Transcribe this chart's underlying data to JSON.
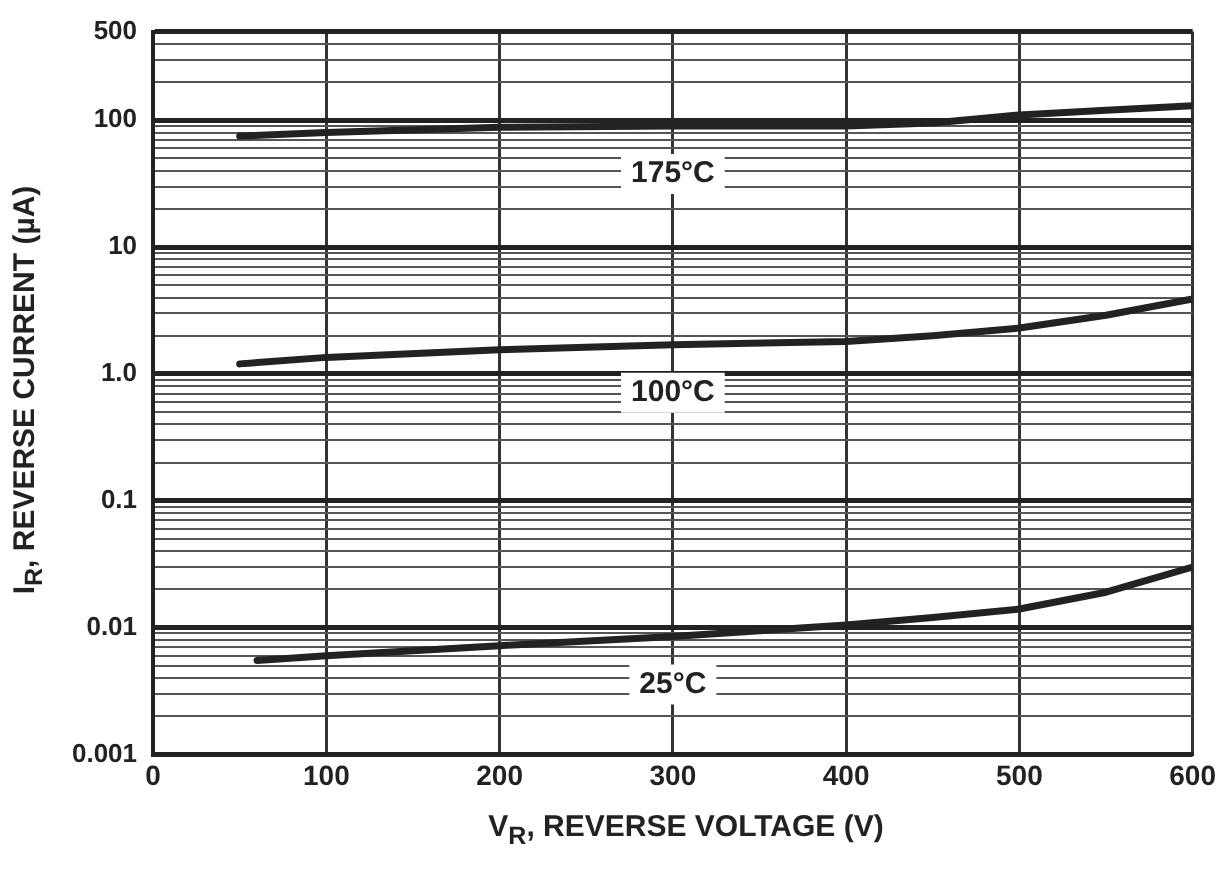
{
  "chart_data": {
    "type": "line",
    "xlabel": "V$_{R}$, REVERSE VOLTAGE (V)",
    "ylabel": "I$_{R}$, REVERSE CURRENT (µA)",
    "log": "y",
    "grid": true,
    "legend": false,
    "marker": "none",
    "line_style": "solid",
    "xlim": [
      0,
      600
    ],
    "xticks": [
      0,
      100,
      200,
      300,
      400,
      500,
      600
    ],
    "ylim": [
      0.001,
      500
    ],
    "yticks": [
      0.001,
      {
        "value": 0.002,
        "label": null
      },
      {
        "value": 0.003,
        "label": null
      },
      {
        "value": 0.004,
        "label": null
      },
      {
        "value": 0.005,
        "label": null
      },
      {
        "value": 0.006,
        "label": null
      },
      {
        "value": 0.007,
        "label": null
      },
      {
        "value": 0.008,
        "label": null
      },
      {
        "value": 0.009,
        "label": null
      },
      0.01,
      {
        "value": 0.02,
        "label": null
      },
      {
        "value": 0.03,
        "label": null
      },
      {
        "value": 0.04,
        "label": null
      },
      {
        "value": 0.05,
        "label": null
      },
      {
        "value": 0.06,
        "label": null
      },
      {
        "value": 0.07,
        "label": null
      },
      {
        "value": 0.08,
        "label": null
      },
      {
        "value": 0.09,
        "label": null
      },
      0.1,
      {
        "value": 0.2,
        "label": null
      },
      {
        "value": 0.3,
        "label": null
      },
      {
        "value": 0.4,
        "label": null
      },
      {
        "value": 0.5,
        "label": null
      },
      {
        "value": 0.6,
        "label": null
      },
      {
        "value": 0.7,
        "label": null
      },
      {
        "value": 0.8,
        "label": null
      },
      {
        "value": 0.9,
        "label": null
      },
      {
        "value": 1,
        "label": "1.0"
      },
      {
        "value": 2,
        "label": null
      },
      {
        "value": 3,
        "label": null
      },
      {
        "value": 4,
        "label": null
      },
      {
        "value": 5,
        "label": null
      },
      {
        "value": 6,
        "label": null
      },
      {
        "value": 7,
        "label": null
      },
      {
        "value": 8,
        "label": null
      },
      {
        "value": 9,
        "label": null
      },
      10,
      {
        "value": 20,
        "label": null
      },
      {
        "value": 30,
        "label": null
      },
      {
        "value": 40,
        "label": null
      },
      {
        "value": 50,
        "label": null
      },
      {
        "value": 60,
        "label": null
      },
      {
        "value": 70,
        "label": null
      },
      {
        "value": 80,
        "label": null
      },
      {
        "value": 90,
        "label": null
      },
      100,
      {
        "value": 200,
        "label": null
      },
      {
        "value": 300,
        "label": null
      },
      {
        "value": 400,
        "label": null
      },
      500
    ],
    "series": [
      {
        "name": "175°C",
        "color": "#222222",
        "x": [
          50,
          100,
          200,
          300,
          400,
          450,
          500,
          550,
          600
        ],
        "values": [
          75,
          80,
          88,
          90,
          90,
          95,
          110,
          120,
          130
        ]
      },
      {
        "name": "100°C",
        "color": "#222222",
        "x": [
          50,
          100,
          200,
          300,
          400,
          450,
          500,
          550,
          600
        ],
        "values": [
          1.2,
          1.35,
          1.55,
          1.7,
          1.8,
          2.0,
          2.3,
          2.9,
          3.9
        ]
      },
      {
        "name": "25°C",
        "color": "#222222",
        "x": [
          60,
          100,
          200,
          300,
          400,
          450,
          500,
          550,
          600
        ],
        "values": [
          0.0055,
          0.006,
          0.0072,
          0.0085,
          0.0105,
          0.012,
          0.014,
          0.019,
          0.03
        ]
      }
    ]
  }
}
